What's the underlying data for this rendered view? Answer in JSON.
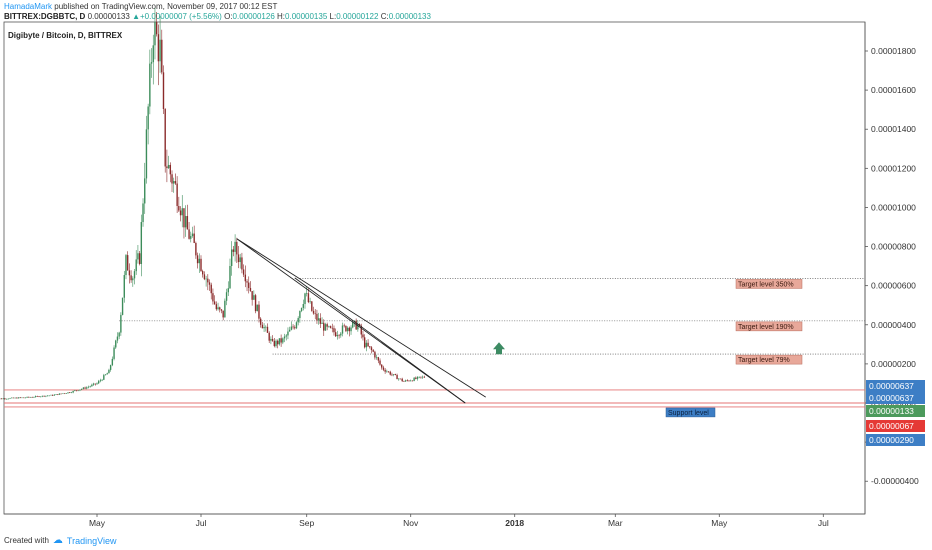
{
  "header": {
    "author": "HamadaMark",
    "published_text": "published on TradingView.com, November 09, 2017 00:12 EST",
    "symbol": "BITTREX:DGBBTC, D",
    "last": "0.00000133",
    "change": "+0.00000007 (+5.56%)",
    "open_label": "O:",
    "open": "0.00000126",
    "high_label": "H:",
    "high": "0.00000135",
    "low_label": "L:",
    "low": "0.00000122",
    "close_label": "C:",
    "close": "0.00000133"
  },
  "footer": {
    "created_with": "Created with",
    "brand": "TradingView"
  },
  "chart_data": {
    "type": "candlestick",
    "title": "Digibyte / Bitcoin, D, BITTREX",
    "x_ticks": [
      "May",
      "Jul",
      "Sep",
      "Nov",
      "2018",
      "Mar",
      "May",
      "Jul"
    ],
    "y_ticks": [
      "0.00001800",
      "0.00001600",
      "0.00001400",
      "0.00001200",
      "0.00001000",
      "0.00000800",
      "0.00000600",
      "0.00000400",
      "0.00000200",
      "0.00000000",
      "-0.00000200",
      "-0.00000400"
    ],
    "ylim": [
      -5.2e-06,
      1.95e-05
    ],
    "price_path": [
      [
        "2017-03-01",
        2e-07
      ],
      [
        "2017-03-20",
        2.8e-07
      ],
      [
        "2017-04-05",
        4e-07
      ],
      [
        "2017-04-15",
        5.5e-07
      ],
      [
        "2017-04-25",
        8e-07
      ],
      [
        "2017-05-01",
        1e-06
      ],
      [
        "2017-05-08",
        1.6e-06
      ],
      [
        "2017-05-14",
        3.8e-06
      ],
      [
        "2017-05-18",
        7.2e-06
      ],
      [
        "2017-05-22",
        6.5e-06
      ],
      [
        "2017-05-26",
        7.5e-06
      ],
      [
        "2017-05-31",
        1.5e-05
      ],
      [
        "2017-06-03",
        1.92e-05
      ],
      [
        "2017-06-07",
        1.8e-05
      ],
      [
        "2017-06-10",
        1.25e-05
      ],
      [
        "2017-06-14",
        1.15e-05
      ],
      [
        "2017-06-18",
        1.05e-05
      ],
      [
        "2017-06-22",
        9e-06
      ],
      [
        "2017-06-28",
        7.8e-06
      ],
      [
        "2017-07-05",
        6.2e-06
      ],
      [
        "2017-07-10",
        4.8e-06
      ],
      [
        "2017-07-14",
        4.5e-06
      ],
      [
        "2017-07-20",
        8e-06
      ],
      [
        "2017-07-25",
        7.2e-06
      ],
      [
        "2017-07-30",
        5.8e-06
      ],
      [
        "2017-08-05",
        4.2e-06
      ],
      [
        "2017-08-12",
        3e-06
      ],
      [
        "2017-08-18",
        3.2e-06
      ],
      [
        "2017-08-25",
        4e-06
      ],
      [
        "2017-08-31",
        5.6e-06
      ],
      [
        "2017-09-05",
        4.5e-06
      ],
      [
        "2017-09-12",
        3.8e-06
      ],
      [
        "2017-09-18",
        3.6e-06
      ],
      [
        "2017-09-25",
        3.9e-06
      ],
      [
        "2017-10-01",
        4e-06
      ],
      [
        "2017-10-05",
        3e-06
      ],
      [
        "2017-10-10",
        2.6e-06
      ],
      [
        "2017-10-15",
        1.8e-06
      ],
      [
        "2017-10-22",
        1.4e-06
      ],
      [
        "2017-10-28",
        1.1e-06
      ],
      [
        "2017-11-02",
        1.2e-06
      ],
      [
        "2017-11-09",
        1.33e-06
      ]
    ],
    "trendlines": [
      {
        "from": [
          "2017-07-22",
          8.4e-06
        ],
        "to": [
          "2017-12-03",
          0.0
        ]
      },
      {
        "from": [
          "2017-07-22",
          8.4e-06
        ],
        "to": [
          "2017-12-15",
          3e-07
        ]
      },
      {
        "from": [
          "2017-08-25",
          6.4e-06
        ],
        "to": [
          "2017-12-03",
          0.0
        ]
      }
    ],
    "horizontal_levels": [
      {
        "label": "Target level 350%",
        "value": 6.37e-06,
        "style": "dotted",
        "from": "2017-08-28"
      },
      {
        "label": "Target level 190%",
        "value": 4.2e-06,
        "style": "dotted",
        "from": "2017-05-14"
      },
      {
        "label": "Target level 79%",
        "value": 2.5e-06,
        "style": "dotted",
        "from": "2017-08-12"
      },
      {
        "value": 6.7e-07,
        "style": "solid-red"
      },
      {
        "value": 0.0,
        "style": "solid-red"
      },
      {
        "value": -2e-07,
        "style": "solid-red"
      }
    ],
    "support_label": "Support level",
    "price_tags": [
      {
        "text": "0.00000637",
        "color": "#3d7ec5"
      },
      {
        "text": "0.00000637",
        "color": "#3d7ec5"
      },
      {
        "text": "0.00000133",
        "color": "#4c9a5c"
      },
      {
        "text": "0.00000067",
        "color": "#e53935"
      },
      {
        "text": "0.00000290",
        "color": "#3d7ec5"
      }
    ],
    "arrow_color": "#3d8b63",
    "colors": {
      "up": "#3c8c5a",
      "down": "#8b2a2a",
      "level_label_bg": "#e8a89a",
      "support_bg": "#3d7ec5"
    }
  }
}
